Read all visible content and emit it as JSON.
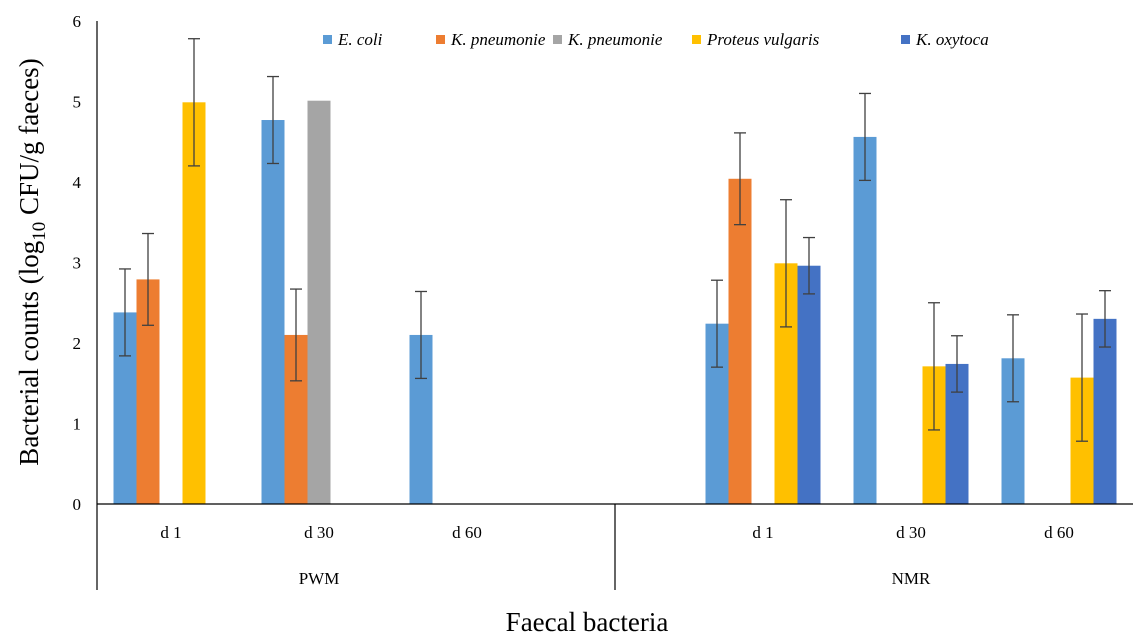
{
  "chart_data": {
    "type": "bar",
    "ylabel_main": "Bacterial counts (log",
    "ylabel_sub": "10",
    "ylabel_tail": " CFU/g faeces)",
    "xlabel": "Faecal bacteria",
    "ylim": [
      0,
      6
    ],
    "yticks": [
      "0",
      "1",
      "2",
      "3",
      "4",
      "5",
      "6"
    ],
    "grid": false,
    "legend_position": "top",
    "groups": [
      {
        "label": "PWM",
        "categories": [
          "d 1",
          "d 30",
          "d 60"
        ]
      },
      {
        "label": "NMR",
        "categories": [
          "d 1",
          "d 30",
          "d 60"
        ]
      }
    ],
    "categories": [
      "d 1",
      "d 30",
      "d 60",
      "",
      "d 1",
      "d 30",
      "d 60"
    ],
    "series": [
      {
        "name": "E. coli",
        "color": "#5B9BD5",
        "values": [
          2.38,
          4.77,
          2.1,
          null,
          2.24,
          4.56,
          1.81
        ],
        "errors": [
          0.54,
          0.54,
          0.54,
          null,
          0.54,
          0.54,
          0.54
        ]
      },
      {
        "name": "K. pneumonie",
        "color": "#ED7D31",
        "values": [
          2.79,
          2.1,
          null,
          null,
          4.04,
          null,
          null
        ],
        "errors": [
          0.57,
          0.57,
          null,
          null,
          0.57,
          null,
          null
        ]
      },
      {
        "name": "K. pneumonie",
        "color": "#A5A5A5",
        "values": [
          null,
          5.01,
          null,
          null,
          null,
          null,
          null
        ],
        "errors": [
          null,
          null,
          null,
          null,
          null,
          null,
          null
        ]
      },
      {
        "name": "Proteus vulgaris",
        "color": "#FFC000",
        "values": [
          4.99,
          null,
          null,
          null,
          2.99,
          1.71,
          1.57
        ],
        "errors": [
          0.79,
          null,
          null,
          null,
          0.79,
          0.79,
          0.79
        ]
      },
      {
        "name": "K. oxytoca",
        "color": "#4472C4",
        "values": [
          null,
          null,
          null,
          null,
          2.96,
          1.74,
          2.3
        ],
        "errors": [
          null,
          null,
          null,
          null,
          0.35,
          0.35,
          0.35
        ]
      }
    ]
  }
}
